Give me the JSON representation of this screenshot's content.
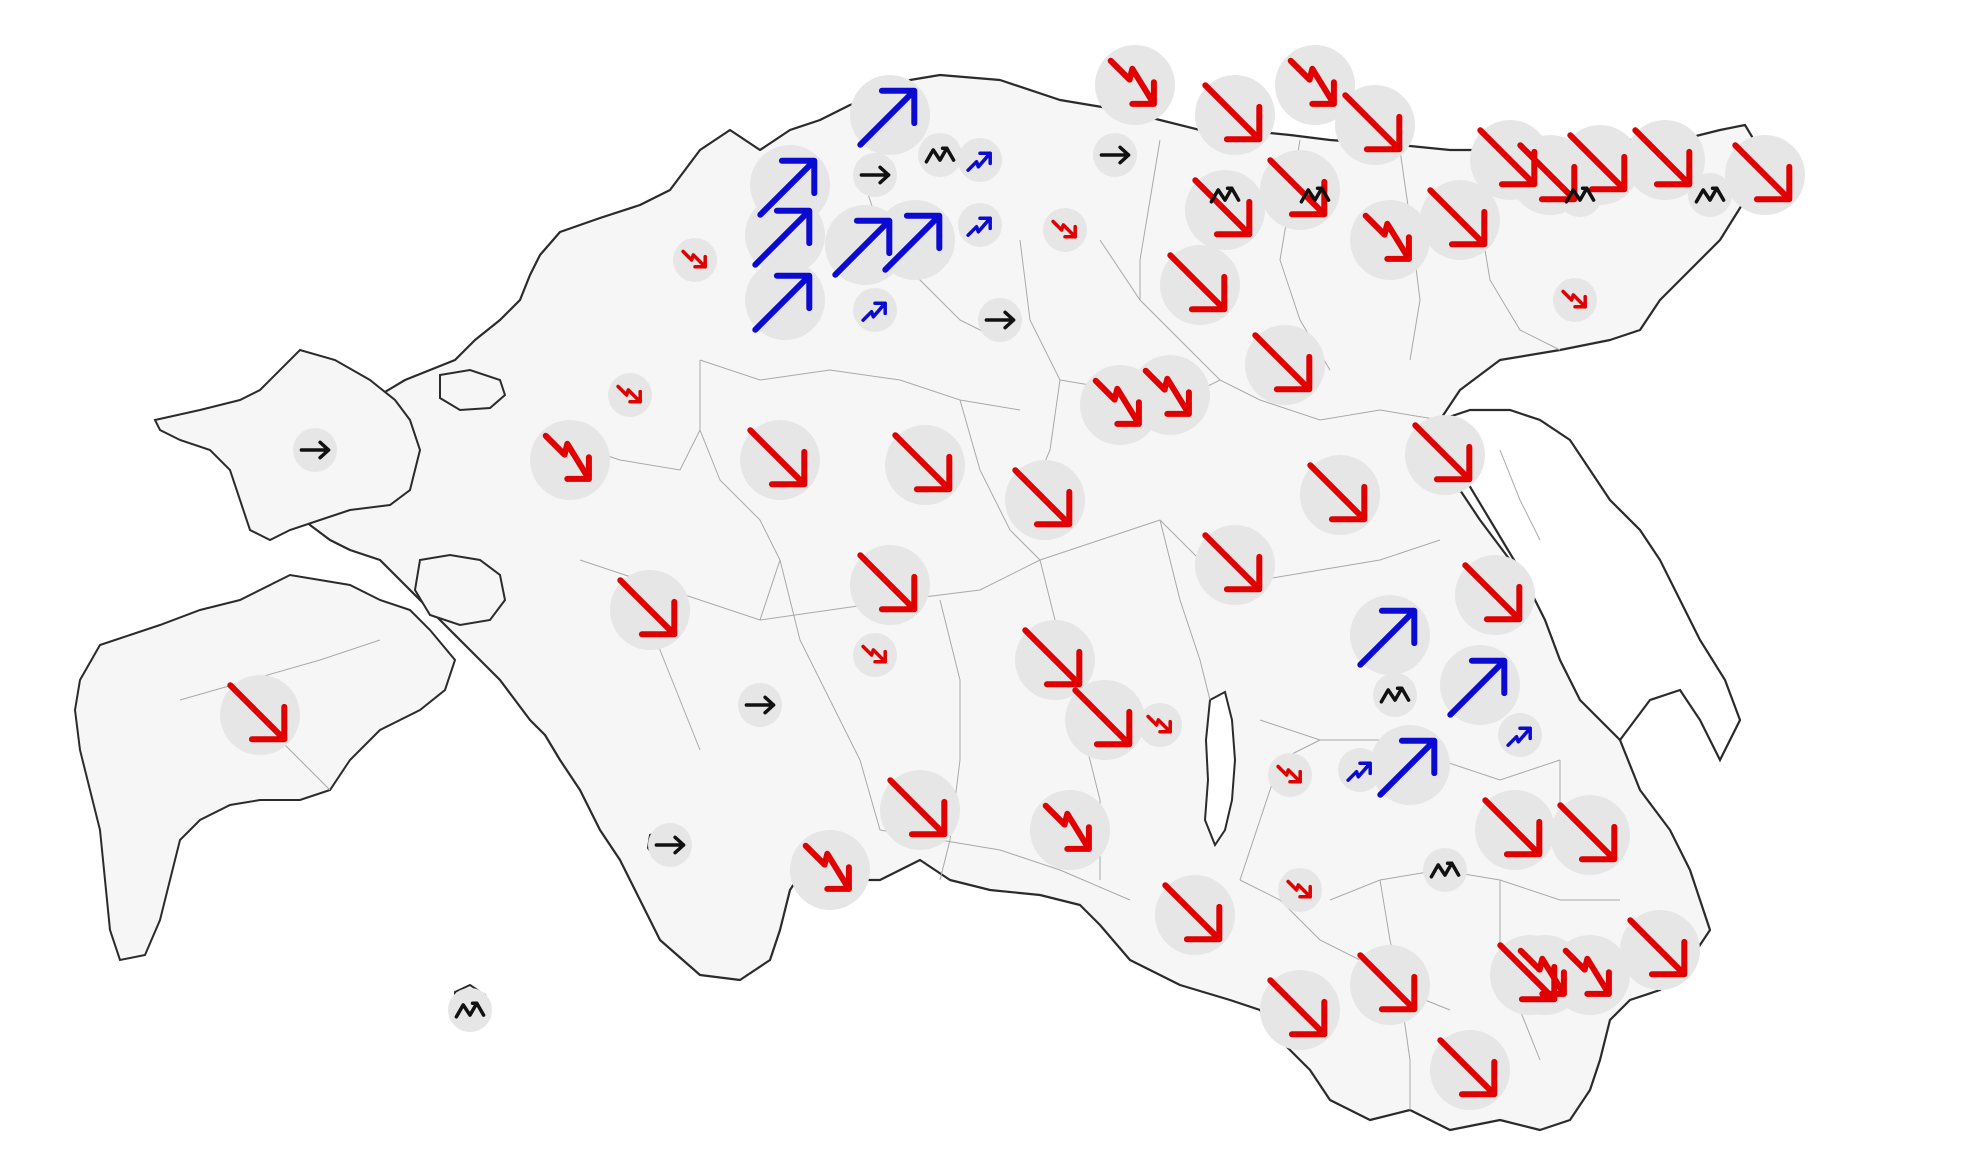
{
  "legend_colors": {
    "decline": "#e00000",
    "growth": "#0a0ad0",
    "stable": "#111111",
    "halo": "#e6e6e6"
  },
  "trends": [
    "down",
    "down",
    "down",
    "down",
    "down",
    "down",
    "down",
    "down",
    "down",
    "down",
    "down",
    "down",
    "down",
    "down",
    "down",
    "down",
    "down",
    "down",
    "down",
    "down",
    "down",
    "down",
    "down",
    "down",
    "down",
    "down",
    "down",
    "down",
    "down",
    "down",
    "down",
    "down",
    "down",
    "up",
    "up",
    "up",
    "up",
    "up",
    "up",
    "up",
    "up",
    "up",
    "flat",
    "flat",
    "flat",
    "flat",
    "flat",
    "flat",
    "mixed",
    "mixed",
    "mixed",
    "mixed",
    "mixed",
    "mixed",
    "mixed",
    "mixed",
    "zigzag_down",
    "zigzag_down",
    "zigzag_down",
    "zigzag_down",
    "zigzag_down",
    "zigzag_down",
    "zigzag_down",
    "zigzag_down",
    "zigzag_down",
    "zigzag_down",
    "small_down",
    "small_down",
    "small_down",
    "small_down",
    "small_down",
    "small_down",
    "small_down",
    "small_down",
    "zigzag_up",
    "zigzag_up",
    "zigzag_up",
    "zigzag_up",
    "zigzag_up"
  ]
}
